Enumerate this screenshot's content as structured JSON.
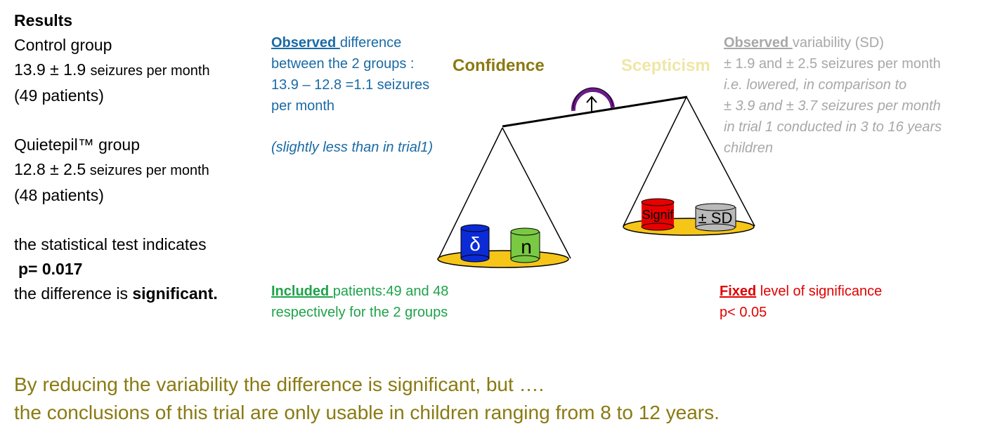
{
  "left": {
    "heading": "Results",
    "control_title": "Control group",
    "control_value": "13.9 ± 1.9 ",
    "control_unit": " seizures per month",
    "control_patients": " (49 patients)",
    "quiet_title": "Quietepil™ group",
    "quiet_value": "12.8 ± 2.5",
    "quiet_unit": " seizures per month",
    "quiet_patients": "(48 patients)",
    "test_text": "the statistical test indicates",
    "p_value": "p= 0.017",
    "difference_prefix": "the difference is ",
    "difference_word": "significant."
  },
  "observed_difference": {
    "keyword": "Observed ",
    "line1_rest": "difference",
    "line2": "between the 2 groups :",
    "line3": "13.9 – 12.8 =1.1 seizures",
    "line4": "per month",
    "note": "(slightly less than in trial1)"
  },
  "headers": {
    "confidence": "Confidence",
    "scepticism": "Scepticism"
  },
  "observed_variability": {
    "keyword": "Observed ",
    "line1_rest": "variability (SD)",
    "line2": "±  1.9 and ±  2.5 seizures per month",
    "line3": "i.e. lowered, in comparison to",
    "line4": "±  3.9 and ±  3.7 seizures per month",
    "line5": "in  trial 1 conducted in 3 to 16 years",
    "line6": "children"
  },
  "included": {
    "keyword": "Included ",
    "line1_rest": "patients:49 and 48",
    "line2": "respectively for the 2 groups"
  },
  "fixed": {
    "keyword": "Fixed",
    "line1_rest": " level of significance",
    "line2": "p< 0.05"
  },
  "cylinders": {
    "delta": "δ",
    "n": "n",
    "signif": "Signif",
    "sd": "± SD"
  },
  "conclusion": {
    "line1": "By reducing the variability the difference is significant, but ….",
    "line2": "the conclusions of this trial are only usable in children ranging from 8 to 12 years."
  },
  "colors": {
    "blue_text": "#1a6aa6",
    "green_text": "#1fa24a",
    "gray_text": "#a8a8a8",
    "red_text": "#e00000",
    "olive_text": "#8a7a12",
    "pale_yellow_text": "#f0e6a6",
    "pan_yellow": "#f5c518",
    "cyl_blue": "#0a2bd6",
    "cyl_green": "#7ac943",
    "cyl_red": "#e80000",
    "cyl_gray": "#b9b9b9",
    "pivot_purple": "#6a1b8a"
  }
}
